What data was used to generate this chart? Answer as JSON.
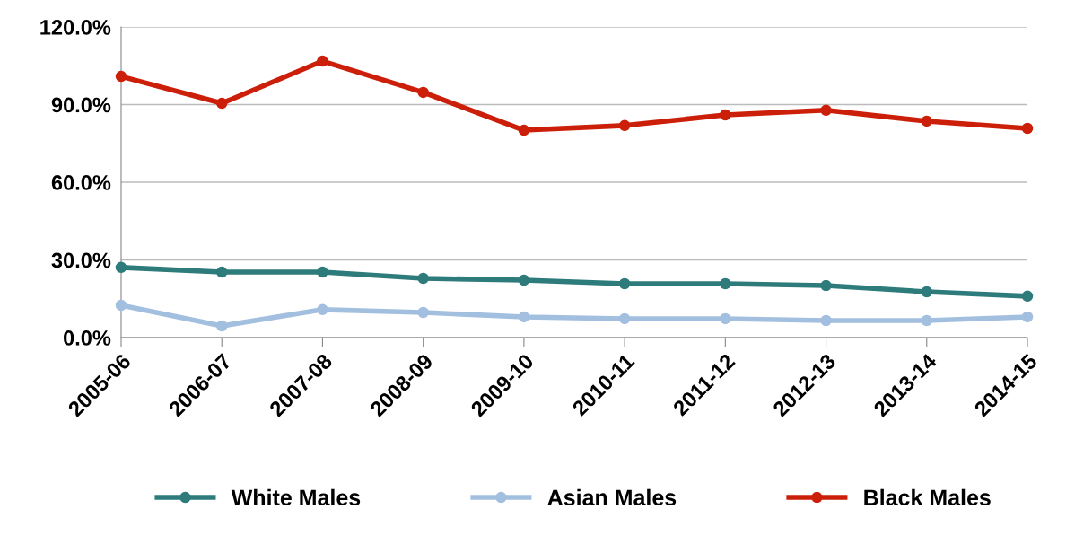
{
  "chart_data": {
    "type": "line",
    "categories": [
      "2005-06",
      "2006-07",
      "2007-08",
      "2008-09",
      "2009-10",
      "2010-11",
      "2011-12",
      "2012-13",
      "2013-14",
      "2014-15"
    ],
    "series": [
      {
        "name": "White Males",
        "color": "#2e7b7b",
        "values": [
          27.1,
          25.3,
          25.3,
          22.9,
          22.2,
          20.8,
          20.8,
          20.1,
          17.7,
          16.0
        ]
      },
      {
        "name": "Asian Males",
        "color": "#a3bfe0",
        "values": [
          12.5,
          4.5,
          10.8,
          9.7,
          8.0,
          7.3,
          7.3,
          6.6,
          6.6,
          8.0
        ]
      },
      {
        "name": "Black Males",
        "color": "#cc1f0a",
        "values": [
          100.9,
          90.5,
          106.8,
          94.7,
          80.1,
          81.9,
          86.0,
          87.8,
          83.6,
          80.8
        ]
      }
    ],
    "ylim": [
      0,
      120
    ],
    "yticks": [
      {
        "value": 0,
        "label": "0.0%"
      },
      {
        "value": 30,
        "label": "30.0%"
      },
      {
        "value": 60,
        "label": "60.0%"
      },
      {
        "value": 90,
        "label": "90.0%"
      },
      {
        "value": 120,
        "label": "120.0%"
      }
    ],
    "grid": "y",
    "legend": "bottom",
    "marker": "circle",
    "line_style": "solid"
  }
}
